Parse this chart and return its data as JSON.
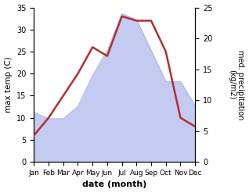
{
  "months": [
    "Jan",
    "Feb",
    "Mar",
    "Apr",
    "May",
    "Jun",
    "Jul",
    "Aug",
    "Sep",
    "Oct",
    "Nov",
    "Dec"
  ],
  "temp": [
    6,
    10,
    15,
    20,
    26,
    24,
    33,
    32,
    32,
    25,
    10,
    8
  ],
  "precip": [
    8,
    7,
    7,
    9,
    14,
    18,
    24,
    23,
    18,
    13,
    13,
    9
  ],
  "temp_color": "#b03030",
  "precip_fill_color": "#c5caf0",
  "precip_edge_color": "#a0a8e0",
  "ylabel_left": "max temp (C)",
  "ylabel_right": "med. precipitation\n(kg/m2)",
  "xlabel": "date (month)",
  "ylim_left": [
    0,
    35
  ],
  "ylim_right": [
    0,
    25
  ],
  "yticks_left": [
    0,
    5,
    10,
    15,
    20,
    25,
    30,
    35
  ],
  "yticks_right": [
    0,
    5,
    10,
    15,
    20,
    25
  ],
  "bg_color": "#ffffff"
}
